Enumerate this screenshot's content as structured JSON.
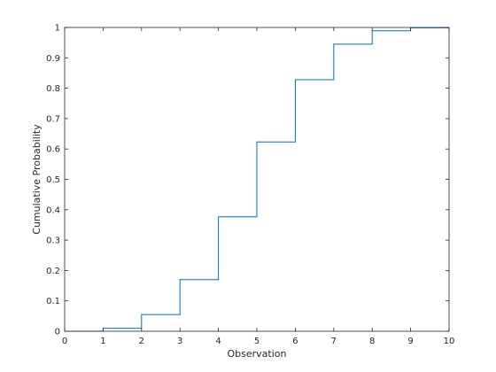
{
  "chart_data": {
    "type": "line",
    "title": "",
    "xlabel": "Observation",
    "ylabel": "Cumulative Probability",
    "xlim": [
      0,
      10
    ],
    "ylim": [
      0,
      1
    ],
    "x_ticks": [
      0,
      1,
      2,
      3,
      4,
      5,
      6,
      7,
      8,
      9,
      10
    ],
    "y_ticks": [
      0,
      0.1,
      0.2,
      0.3,
      0.4,
      0.5,
      0.6,
      0.7,
      0.8,
      0.9,
      1
    ],
    "x_tick_labels": [
      "0",
      "1",
      "2",
      "3",
      "4",
      "5",
      "6",
      "7",
      "8",
      "9",
      "10"
    ],
    "y_tick_labels": [
      "0",
      "0.1",
      "0.2",
      "0.3",
      "0.4",
      "0.5",
      "0.6",
      "0.7",
      "0.8",
      "0.9",
      "1"
    ],
    "grid": false,
    "line_color": "#0072bd",
    "axis_color": "#262626",
    "series": [
      {
        "step": "post",
        "x": [
          0,
          1,
          2,
          3,
          4,
          5,
          6,
          7,
          8,
          9,
          10
        ],
        "y": [
          0,
          0.01,
          0.055,
          0.17,
          0.377,
          0.623,
          0.828,
          0.945,
          0.989,
          0.999,
          1.0
        ]
      }
    ]
  }
}
